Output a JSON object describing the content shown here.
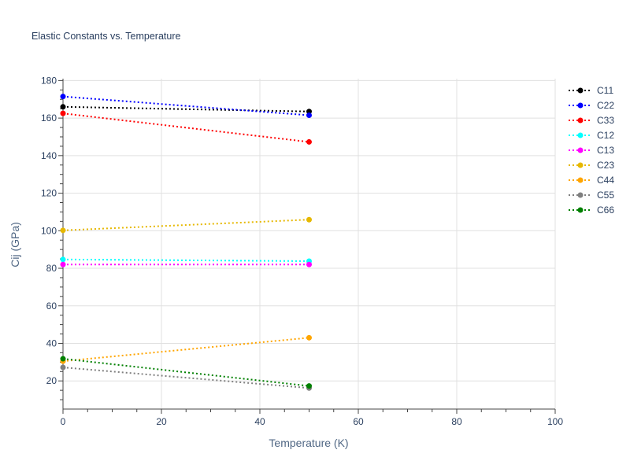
{
  "chart_data": {
    "type": "line",
    "title": "Elastic Constants vs. Temperature",
    "xlabel": "Temperature (K)",
    "ylabel": "Cij (GPa)",
    "xlim": [
      0,
      100
    ],
    "ylim": [
      5,
      181
    ],
    "xticks": [
      0,
      20,
      40,
      60,
      80,
      100
    ],
    "yticks": [
      20,
      40,
      60,
      80,
      100,
      120,
      140,
      160,
      180
    ],
    "grid": true,
    "legend_position": "right",
    "line_style": "dotted",
    "x": [
      0,
      50
    ],
    "series": [
      {
        "name": "C11",
        "color": "#000000",
        "values": [
          166,
          163.5
        ]
      },
      {
        "name": "C22",
        "color": "#0000ff",
        "values": [
          171.5,
          161.5
        ]
      },
      {
        "name": "C33",
        "color": "#ff0000",
        "values": [
          162.5,
          147.3
        ]
      },
      {
        "name": "C12",
        "color": "#00ffff",
        "values": [
          84.7,
          83.8
        ]
      },
      {
        "name": "C13",
        "color": "#ff00ff",
        "values": [
          82,
          82
        ]
      },
      {
        "name": "C23",
        "color": "#e6b800",
        "values": [
          100.2,
          105.9
        ]
      },
      {
        "name": "C44",
        "color": "#ffa500",
        "values": [
          30.5,
          43
        ]
      },
      {
        "name": "C55",
        "color": "#808080",
        "values": [
          27.2,
          16.2
        ]
      },
      {
        "name": "C66",
        "color": "#008000",
        "values": [
          31.8,
          17.3
        ]
      }
    ]
  }
}
